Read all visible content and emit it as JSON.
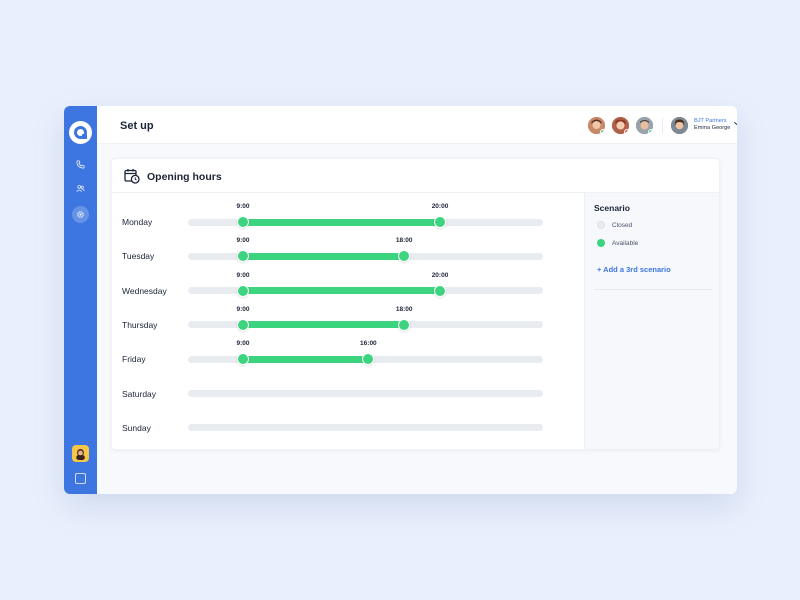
{
  "header": {
    "title": "Set up",
    "account": {
      "company": "BJT Partners",
      "user": "Emma George"
    }
  },
  "team_avatars": [
    {
      "name": "avatar-1",
      "status_color": "#3cd47f"
    },
    {
      "name": "avatar-2",
      "status_color": "#e84545"
    },
    {
      "name": "avatar-3",
      "status_color": "#3cd47f"
    }
  ],
  "sidebar": {
    "icons": [
      "logo-icon",
      "phone-icon",
      "contacts-icon",
      "settings-icon",
      "user-avatar",
      "exit-icon"
    ]
  },
  "card": {
    "title": "Opening hours"
  },
  "scenario": {
    "title": "Scenario",
    "legend": [
      {
        "label": "Closed",
        "color": "#e8ebf0"
      },
      {
        "label": "Available",
        "color": "#3cd47f"
      }
    ],
    "add_label": "+ Add a 3rd scenario"
  },
  "days": [
    {
      "day": "Monday",
      "start": "9:00",
      "end": "20:00",
      "start_h": 9,
      "end_h": 20
    },
    {
      "day": "Tuesday",
      "start": "9:00",
      "end": "18:00",
      "start_h": 9,
      "end_h": 18
    },
    {
      "day": "Wednesday",
      "start": "9:00",
      "end": "20:00",
      "start_h": 9,
      "end_h": 20
    },
    {
      "day": "Thursday",
      "start": "9:00",
      "end": "18:00",
      "start_h": 9,
      "end_h": 18
    },
    {
      "day": "Friday",
      "start": "9:00",
      "end": "16:00",
      "start_h": 9,
      "end_h": 16
    },
    {
      "day": "Saturday",
      "start": null,
      "end": null
    },
    {
      "day": "Sunday",
      "start": null,
      "end": null
    }
  ],
  "colors": {
    "accent": "#3d75e1",
    "available": "#3cd47f",
    "track": "#e8ebf0"
  }
}
